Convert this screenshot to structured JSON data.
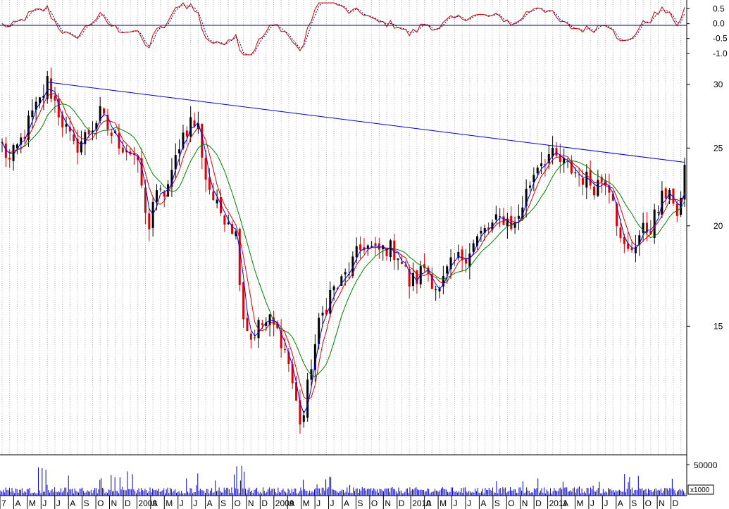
{
  "chart_data": {
    "type": "candlestick",
    "title": "",
    "grid": "dotted vertical",
    "colors": {
      "up": "#000000",
      "down": "#e00000",
      "ma_short": "#0000ff",
      "ma_mid": "#e00000",
      "ma_long": "#008000",
      "trendline": "#0000cc",
      "volume": "#0000cc",
      "oscillator_a": "#cc0000",
      "oscillator_b": "#000080"
    },
    "price_axis": {
      "scale": "log",
      "ticks": [
        "30",
        "25",
        "20",
        "15"
      ],
      "range": [
        10.5,
        32
      ]
    },
    "oscillator_axis": {
      "ticks": [
        "0.5",
        "0.0",
        "-0.5",
        "-1.0"
      ],
      "range": [
        -1.1,
        0.75
      ]
    },
    "volume_axis": {
      "ticks": [
        "50000"
      ],
      "unit": "x1000"
    },
    "time_axis": {
      "labels": [
        "7",
        "A",
        "M",
        "J",
        "J",
        "A",
        "S",
        "O",
        "N",
        "D",
        "2008",
        "A",
        "M",
        "J",
        "J",
        "A",
        "S",
        "O",
        "N",
        "D",
        "2009",
        "A",
        "M",
        "J",
        "J",
        "A",
        "S",
        "O",
        "N",
        "D",
        "2010",
        "A",
        "M",
        "J",
        "J",
        "A",
        "S",
        "O",
        "N",
        "D",
        "2011",
        "A",
        "M",
        "J",
        "J",
        "A",
        "S",
        "O",
        "N",
        "D"
      ]
    },
    "price_path": [
      [
        0,
        25.2
      ],
      [
        2,
        24.0
      ],
      [
        5,
        25.5
      ],
      [
        8,
        27.5
      ],
      [
        10,
        28.5
      ],
      [
        12,
        30.2
      ],
      [
        14,
        28.5
      ],
      [
        16,
        27.0
      ],
      [
        19,
        25.0
      ],
      [
        22,
        25.8
      ],
      [
        26,
        27.5
      ],
      [
        29,
        26.0
      ],
      [
        32,
        25.2
      ],
      [
        35,
        24.5
      ],
      [
        37,
        22.5
      ],
      [
        38.5,
        19.5
      ],
      [
        40,
        21.5
      ],
      [
        43,
        22.0
      ],
      [
        45,
        23.0
      ],
      [
        47,
        25.5
      ],
      [
        50,
        27.0
      ],
      [
        52,
        26.5
      ],
      [
        54,
        23.0
      ],
      [
        57,
        21.0
      ],
      [
        60,
        20.5
      ],
      [
        62,
        19.5
      ],
      [
        64,
        15.5
      ],
      [
        66,
        14.5
      ],
      [
        68,
        15.0
      ],
      [
        71,
        15.2
      ],
      [
        74,
        14.5
      ],
      [
        76,
        13.5
      ],
      [
        78,
        12.0
      ],
      [
        79.5,
        11.2
      ],
      [
        82,
        13.5
      ],
      [
        84,
        15.0
      ],
      [
        87,
        16.5
      ],
      [
        90,
        17.0
      ],
      [
        93,
        18.0
      ],
      [
        96,
        19.0
      ],
      [
        99,
        18.5
      ],
      [
        102,
        18.8
      ],
      [
        105,
        18.5
      ],
      [
        108,
        17.0
      ],
      [
        110,
        17.2
      ],
      [
        112,
        17.8
      ],
      [
        114,
        17.2
      ],
      [
        116,
        16.5
      ],
      [
        118,
        17.5
      ],
      [
        120,
        18.0
      ],
      [
        123,
        18.5
      ],
      [
        127,
        19.5
      ],
      [
        130,
        20.0
      ],
      [
        133,
        20.5
      ],
      [
        136,
        20.0
      ],
      [
        139,
        22.0
      ],
      [
        142,
        24.0
      ],
      [
        145,
        24.5
      ],
      [
        148,
        24.0
      ],
      [
        151,
        23.5
      ],
      [
        154,
        23.0
      ],
      [
        157,
        22.5
      ],
      [
        160,
        23.0
      ],
      [
        162,
        22.0
      ],
      [
        164,
        19.0
      ],
      [
        166,
        18.5
      ],
      [
        169,
        19.5
      ],
      [
        172,
        20.0
      ],
      [
        175,
        21.5
      ],
      [
        177,
        22.5
      ],
      [
        179,
        20.0
      ],
      [
        180,
        22.0
      ],
      [
        181,
        23.5
      ]
    ],
    "trendline": {
      "from": [
        12,
        30.2
      ],
      "to": [
        181,
        24.0
      ]
    }
  }
}
